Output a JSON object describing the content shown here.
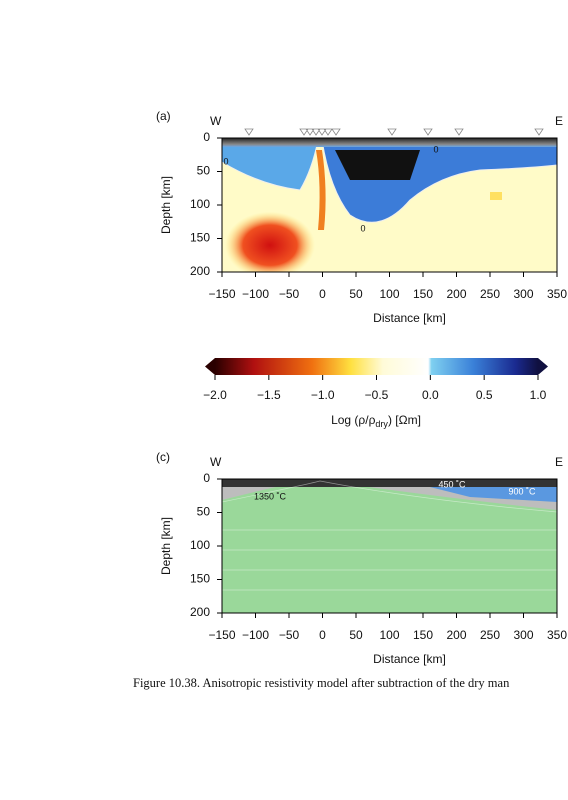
{
  "figure_a": {
    "label": "(a)",
    "west": "W",
    "east": "E",
    "xlabel": "Distance [km]",
    "ylabel": "Depth [km]",
    "xlim": [
      -150,
      350
    ],
    "ylim": [
      0,
      200
    ],
    "xticks": [
      {
        "value": -150,
        "label": "−150"
      },
      {
        "value": -100,
        "label": "−100"
      },
      {
        "value": -50,
        "label": "−50"
      },
      0,
      50,
      100,
      150,
      200,
      250,
      300,
      350
    ],
    "yticks": [
      0,
      50,
      100,
      150,
      200
    ],
    "contour_labels": [
      "0",
      "0",
      "0"
    ]
  },
  "colorbar": {
    "xlim": [
      -2.0,
      1.0
    ],
    "ticks": [
      {
        "value": -2.0,
        "label": "−2.0"
      },
      {
        "value": -1.5,
        "label": "−1.5"
      },
      {
        "value": -1.0,
        "label": "−1.0"
      },
      {
        "value": -0.5,
        "label": "−0.5"
      },
      {
        "value": 0.0,
        "label": "0.0"
      },
      {
        "value": 0.5,
        "label": "0.5"
      },
      {
        "value": 1.0,
        "label": "1.0"
      }
    ],
    "label_parts": [
      "Log (ρ/ρ",
      "dry",
      ") [Ωm]"
    ]
  },
  "figure_c": {
    "label": "(c)",
    "west": "W",
    "east": "E",
    "xlabel": "Distance [km]",
    "ylabel": "Depth [km]",
    "xlim": [
      -150,
      350
    ],
    "ylim": [
      0,
      200
    ],
    "xticks": [
      {
        "value": -150,
        "label": "−150"
      },
      {
        "value": -100,
        "label": "−100"
      },
      {
        "value": -50,
        "label": "−50"
      },
      0,
      50,
      100,
      150,
      200,
      250,
      300,
      350
    ],
    "yticks": [
      0,
      50,
      100,
      150,
      200
    ],
    "annotations": [
      "450 ˚C",
      "900 ˚C",
      "1350 ˚C"
    ]
  },
  "caption": "Figure 10.38.  Anisotropic resistivity model after subtraction of the dry man"
}
